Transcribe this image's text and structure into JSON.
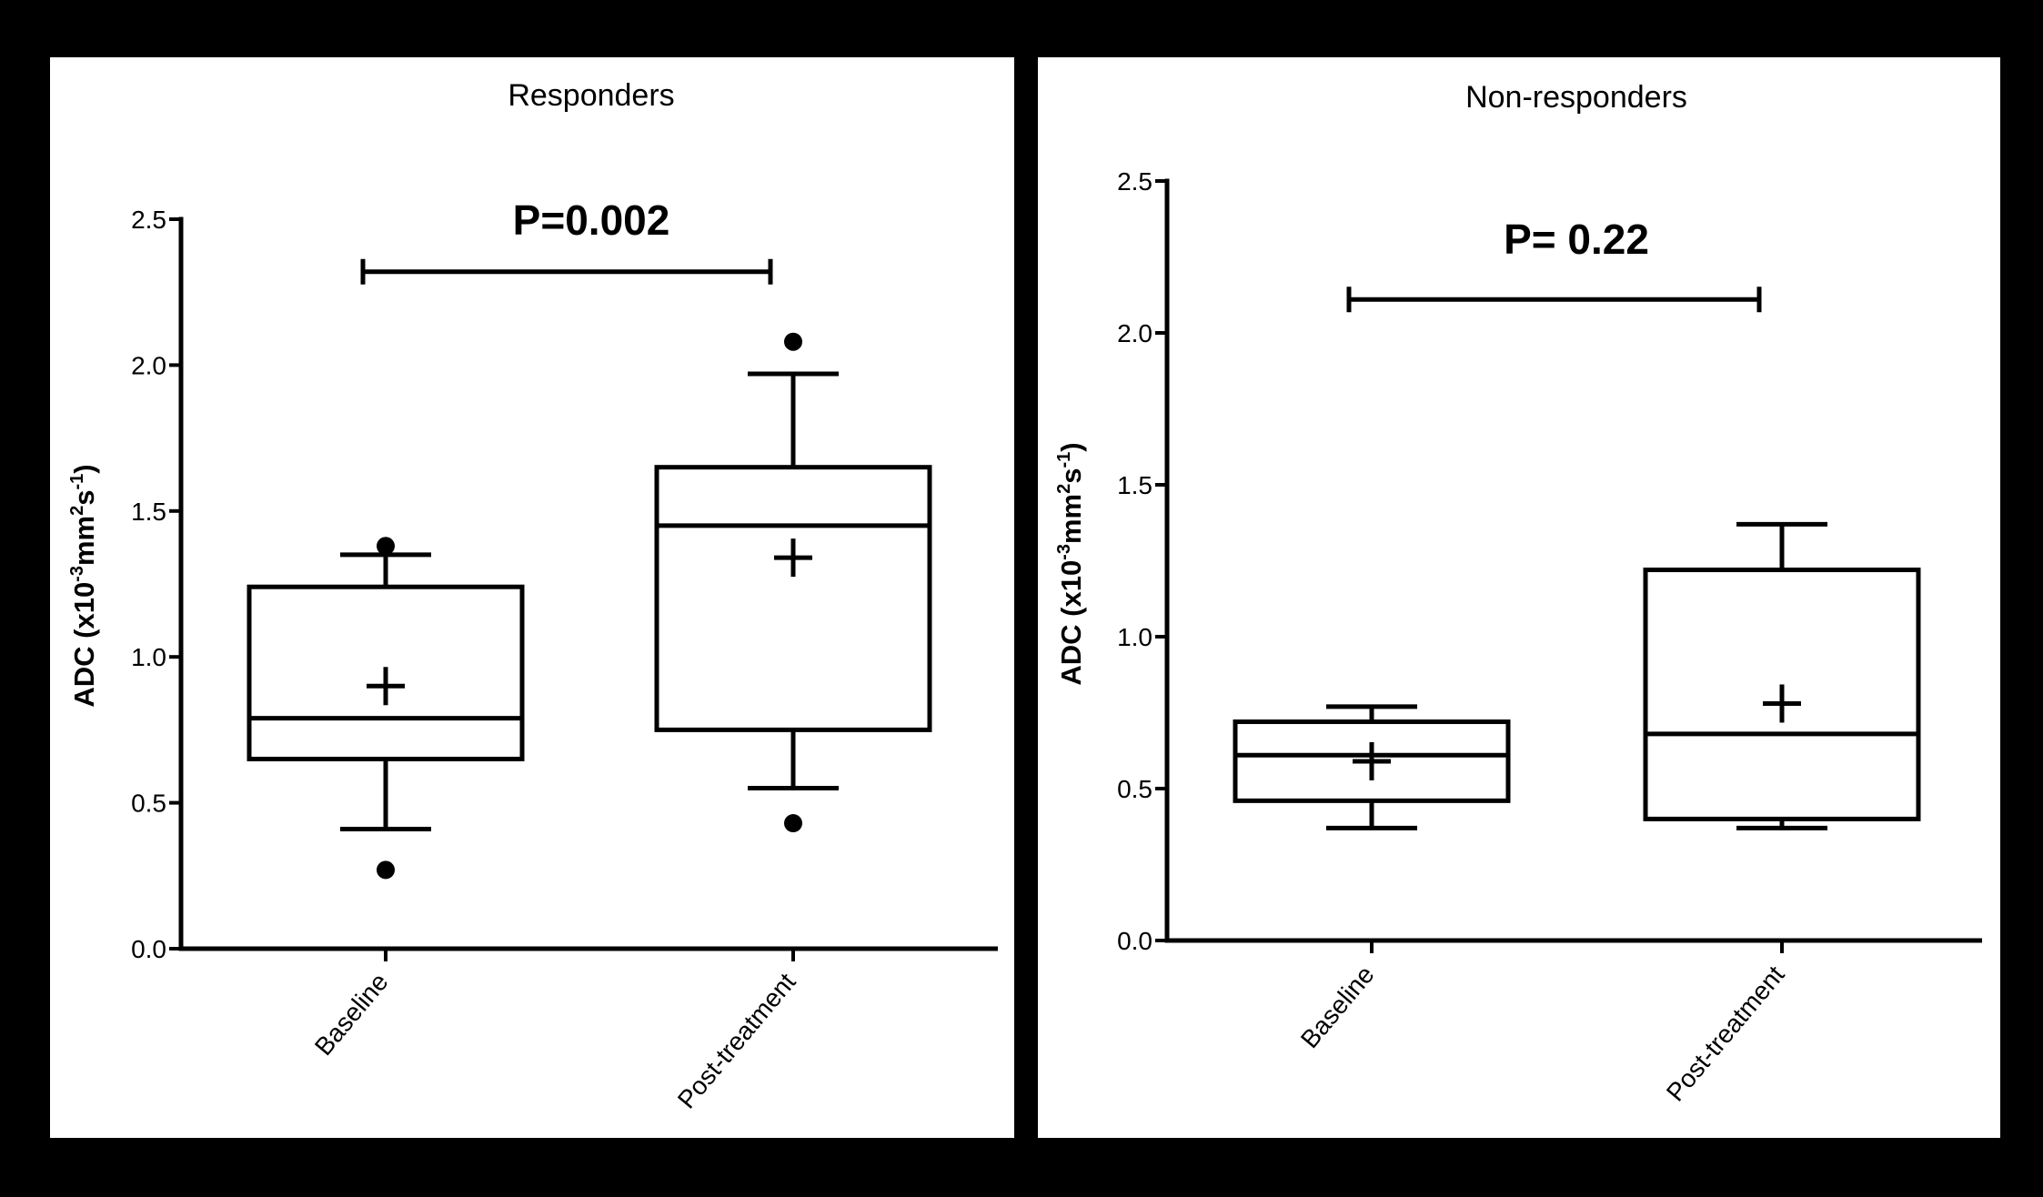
{
  "colors": {
    "background": "#000000",
    "panel": "#ffffff",
    "ink": "#000000"
  },
  "chart_data": [
    {
      "type": "box",
      "title": "Responders",
      "ylabel": {
        "main": "ADC (x10",
        "exp1": "-3",
        "mid": "mm",
        "exp2": "2",
        "mid2": "s",
        "exp3": "-1",
        "close": ")"
      },
      "ylim": [
        0,
        2.5
      ],
      "yticks": [
        "0.0",
        "0.5",
        "1.0",
        "1.5",
        "2.0",
        "2.5"
      ],
      "categories": [
        "Baseline",
        "Post-treatment"
      ],
      "boxes": [
        {
          "whisker_low": 0.41,
          "q1": 0.65,
          "median": 0.79,
          "q3": 1.24,
          "whisker_high": 1.35,
          "mean": 0.9,
          "outliers": [
            0.27,
            1.38
          ]
        },
        {
          "whisker_low": 0.55,
          "q1": 0.75,
          "median": 1.45,
          "q3": 1.65,
          "whisker_high": 1.97,
          "mean": 1.34,
          "outliers": [
            0.43,
            2.08
          ]
        }
      ],
      "significance": {
        "label": "P=0.002",
        "y": 2.32
      }
    },
    {
      "type": "box",
      "title": "Non-responders",
      "ylabel": {
        "main": "ADC (x10",
        "exp1": "-3",
        "mid": "mm",
        "exp2": "2",
        "mid2": "s",
        "exp3": "-1",
        "close": ")"
      },
      "ylim": [
        0,
        2.5
      ],
      "yticks": [
        "0.0",
        "0.5",
        "1.0",
        "1.5",
        "2.0",
        "2.5"
      ],
      "categories": [
        "Baseline",
        "Post-treatment"
      ],
      "boxes": [
        {
          "whisker_low": 0.37,
          "q1": 0.46,
          "median": 0.61,
          "q3": 0.72,
          "whisker_high": 0.77,
          "mean": 0.59,
          "outliers": []
        },
        {
          "whisker_low": 0.37,
          "q1": 0.4,
          "median": 0.68,
          "q3": 1.22,
          "whisker_high": 1.37,
          "mean": 0.78,
          "outliers": []
        }
      ],
      "significance": {
        "label": "P= 0.22",
        "y": 2.11
      }
    }
  ]
}
